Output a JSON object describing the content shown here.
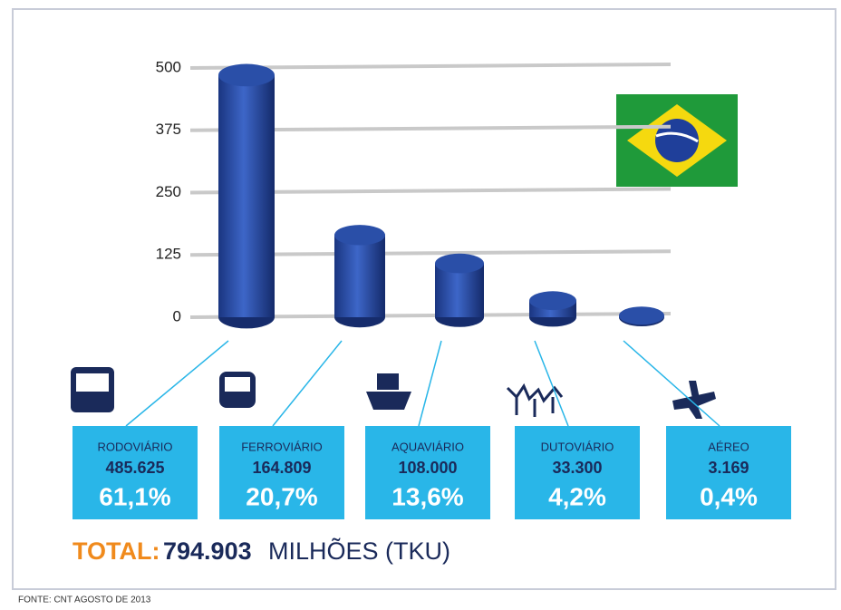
{
  "chart_data": {
    "type": "bar",
    "categories": [
      "RODOVIÁRIO",
      "FERROVIÁRIO",
      "AQUAVIÁRIO",
      "DUTOVIÁRIO",
      "AÉREO"
    ],
    "values": [
      485.625,
      164.809,
      108,
      33.3,
      3.169
    ],
    "value_labels": [
      "485.625",
      "164.809",
      "108.000",
      "33.300",
      "3.169"
    ],
    "shares": [
      61.1,
      20.7,
      13.6,
      4.2,
      0.4
    ],
    "share_labels": [
      "61,1%",
      "20,7%",
      "13,6%",
      "4,2%",
      "0,4%"
    ],
    "color": "#2a4fa8",
    "ylim": [
      0,
      500
    ],
    "yticks": [
      0,
      125,
      250,
      375,
      500
    ],
    "grid": true,
    "total_label": "TOTAL:",
    "total_value": "794.903",
    "total_unit": "MILHÕES (TKU)",
    "source": "FONTE: CNT AGOSTO DE 2013"
  }
}
